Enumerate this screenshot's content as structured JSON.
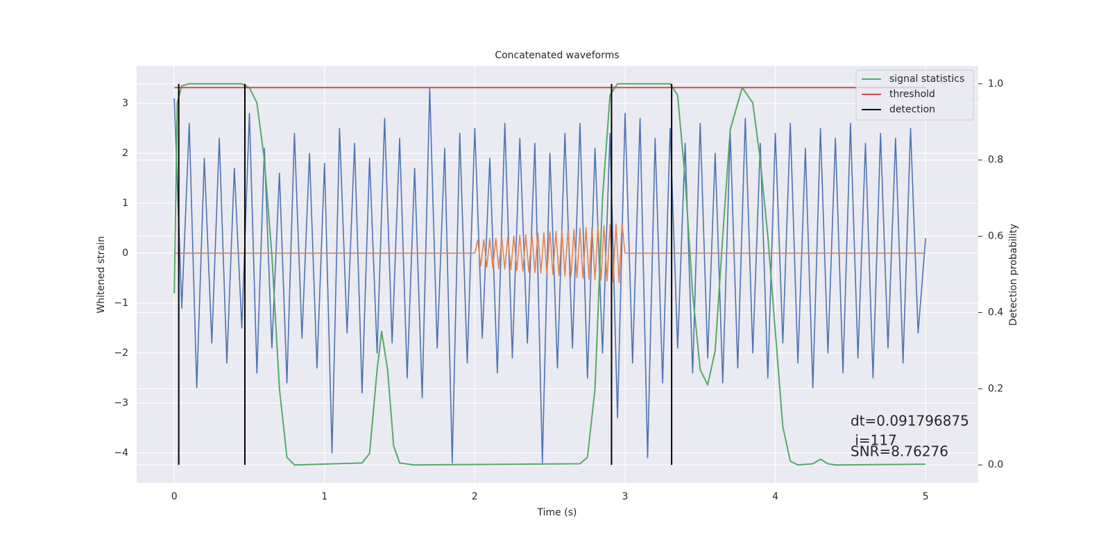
{
  "chart_data": {
    "type": "line",
    "title": "Concatenated waveforms",
    "xlabel": "Time (s)",
    "ylabel": "Whitened strain",
    "y2label": "Detection probability",
    "xlim": [
      -0.25,
      5.35
    ],
    "ylim": [
      -4.6,
      3.75
    ],
    "y2lim": [
      -0.047,
      1.047
    ],
    "xticks": [
      0,
      1,
      2,
      3,
      4,
      5
    ],
    "yticks": [
      {
        "value": -4,
        "label": "−4"
      },
      {
        "value": -3,
        "label": "−3"
      },
      {
        "value": -2,
        "label": "−2"
      },
      {
        "value": -1,
        "label": "−1"
      },
      0,
      1,
      2,
      3
    ],
    "y2ticks": [
      {
        "value": 0,
        "label": "0.0"
      },
      0.2,
      0.4,
      0.6,
      0.8,
      {
        "value": 1,
        "label": "1.0"
      }
    ],
    "grid": true,
    "legend": "upper right",
    "series": [
      {
        "color": "#4c72b0",
        "x": [
          0,
          0.05,
          0.1,
          0.15,
          0.2,
          0.25,
          0.3,
          0.35,
          0.4,
          0.45,
          0.5,
          0.55,
          0.6,
          0.65,
          0.7,
          0.75,
          0.8,
          0.85,
          0.9,
          0.95,
          1,
          1.05,
          1.1,
          1.15,
          1.2,
          1.25,
          1.3,
          1.35,
          1.4,
          1.45,
          1.5,
          1.55,
          1.6,
          1.65,
          1.7,
          1.75,
          1.8,
          1.85,
          1.9,
          1.95,
          2,
          2.05,
          2.1,
          2.15,
          2.2,
          2.25,
          2.3,
          2.35,
          2.4,
          2.45,
          2.5,
          2.55,
          2.6,
          2.65,
          2.7,
          2.75,
          2.8,
          2.85,
          2.9,
          2.95,
          3,
          3.05,
          3.1,
          3.15,
          3.2,
          3.25,
          3.3,
          3.35,
          3.4,
          3.45,
          3.5,
          3.55,
          3.6,
          3.65,
          3.7,
          3.75,
          3.8,
          3.85,
          3.9,
          3.95,
          4,
          4.05,
          4.1,
          4.15,
          4.2,
          4.25,
          4.3,
          4.35,
          4.4,
          4.45,
          4.5,
          4.55,
          4.6,
          4.65,
          4.7,
          4.75,
          4.8,
          4.85,
          4.9,
          4.95,
          5
        ],
        "values": [
          3.1,
          -1.1,
          2.6,
          -2.7,
          1.9,
          -1.8,
          2.3,
          -2.2,
          1.7,
          -1.5,
          2.8,
          -2.4,
          2.1,
          -1.9,
          1.6,
          -2.6,
          2.4,
          -1.7,
          2.0,
          -2.3,
          1.8,
          -4.0,
          2.5,
          -1.6,
          2.2,
          -2.8,
          1.9,
          -2.0,
          2.7,
          -1.8,
          2.3,
          -2.5,
          1.7,
          -2.9,
          3.3,
          -1.9,
          2.1,
          -4.2,
          2.4,
          -2.2,
          2.5,
          -1.7,
          1.9,
          -2.4,
          2.6,
          -2.1,
          2.3,
          -1.8,
          2.2,
          -4.2,
          2.0,
          -2.3,
          2.4,
          -1.9,
          2.6,
          -2.5,
          2.1,
          -2.0,
          2.4,
          -3.3,
          2.8,
          -2.2,
          2.7,
          -4.1,
          2.3,
          -2.6,
          2.5,
          -1.9,
          2.2,
          -2.4,
          2.6,
          -2.1,
          2.0,
          -2.6,
          2.4,
          -2.3,
          2.7,
          -2.0,
          2.2,
          -2.5,
          2.4,
          -1.8,
          2.6,
          -2.2,
          2.1,
          -2.7,
          2.5,
          -2.0,
          2.3,
          -2.4,
          2.6,
          -2.1,
          2.2,
          -2.5,
          2.4,
          -1.9,
          2.3,
          -2.2,
          2.5,
          -1.6,
          0.3
        ]
      },
      {
        "color": "#dd8452",
        "x": [
          0,
          2,
          2.02,
          2.04,
          2.06,
          2.08,
          2.1,
          2.12,
          2.14,
          2.16,
          2.18,
          2.2,
          2.22,
          2.24,
          2.26,
          2.28,
          2.3,
          2.32,
          2.34,
          2.36,
          2.38,
          2.4,
          2.42,
          2.44,
          2.46,
          2.48,
          2.5,
          2.52,
          2.54,
          2.56,
          2.58,
          2.6,
          2.62,
          2.64,
          2.66,
          2.68,
          2.7,
          2.72,
          2.74,
          2.76,
          2.78,
          2.8,
          2.82,
          2.84,
          2.86,
          2.88,
          2.9,
          2.92,
          2.94,
          2.96,
          2.98,
          3,
          5
        ],
        "values": [
          0,
          0,
          0.26,
          -0.26,
          0.27,
          -0.28,
          0.29,
          -0.29,
          0.3,
          -0.31,
          0.31,
          -0.32,
          0.33,
          -0.33,
          0.34,
          -0.35,
          0.36,
          -0.36,
          0.37,
          -0.38,
          0.38,
          -0.39,
          0.4,
          -0.4,
          0.41,
          -0.42,
          0.43,
          -0.43,
          0.44,
          -0.45,
          0.45,
          -0.46,
          0.47,
          -0.47,
          0.48,
          -0.49,
          0.5,
          -0.5,
          0.51,
          -0.52,
          0.52,
          -0.53,
          0.54,
          -0.54,
          0.55,
          -0.56,
          0.57,
          -0.57,
          0.58,
          -0.59,
          0.59,
          0,
          0
        ]
      },
      {
        "name": "signal statistics",
        "color": "#55a868",
        "axis": "y2",
        "x": [
          0,
          0.02,
          0.05,
          0.1,
          0.45,
          0.5,
          0.55,
          0.6,
          0.65,
          0.7,
          0.75,
          0.8,
          1.25,
          1.3,
          1.35,
          1.38,
          1.42,
          1.46,
          1.5,
          1.6,
          2.7,
          2.75,
          2.8,
          2.85,
          2.9,
          2.95,
          3.3,
          3.35,
          3.4,
          3.45,
          3.5,
          3.55,
          3.6,
          3.65,
          3.7,
          3.78,
          3.85,
          3.9,
          3.95,
          4.0,
          4.05,
          4.1,
          4.15,
          4.25,
          4.3,
          4.35,
          4.4,
          5
        ],
        "values": [
          0.45,
          0.95,
          0.995,
          1,
          1,
          0.99,
          0.95,
          0.8,
          0.55,
          0.2,
          0.02,
          0,
          0.005,
          0.03,
          0.25,
          0.35,
          0.25,
          0.05,
          0.005,
          0,
          0.003,
          0.02,
          0.2,
          0.7,
          0.97,
          1,
          1,
          0.97,
          0.75,
          0.45,
          0.25,
          0.21,
          0.3,
          0.6,
          0.88,
          0.99,
          0.95,
          0.8,
          0.6,
          0.35,
          0.1,
          0.01,
          0,
          0.003,
          0.015,
          0.003,
          0,
          0.002
        ]
      },
      {
        "name": "threshold",
        "color": "#c44e52",
        "axis": "y2",
        "x": [
          0,
          5
        ],
        "values": [
          0.99,
          0.99
        ]
      },
      {
        "name": "detection",
        "color": "#000000",
        "kind": "vlines",
        "axis": "y2",
        "x": [
          0.03,
          0.47,
          2.91,
          3.31
        ]
      }
    ],
    "annotations": [
      "dt=0.091796875",
      " i=117",
      "SNR=8.76276"
    ]
  }
}
